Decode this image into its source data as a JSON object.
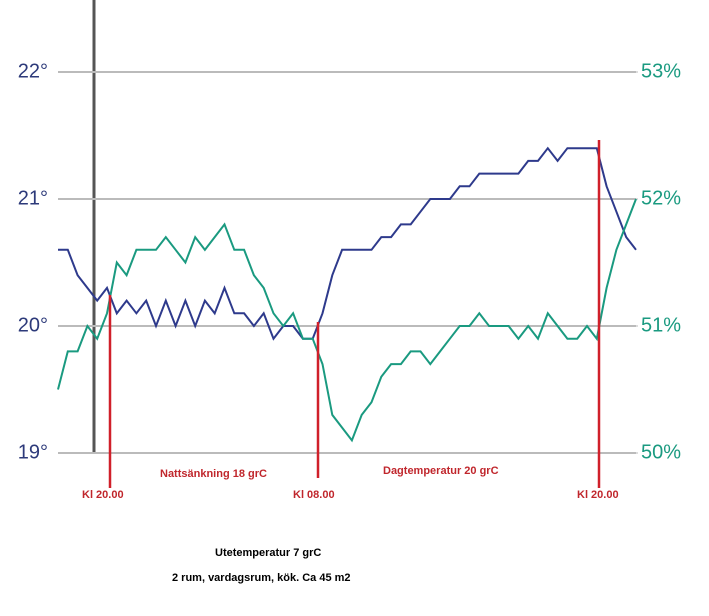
{
  "chart_data": {
    "type": "line",
    "ylim": [
      19,
      22
    ],
    "yticks": [
      {
        "value": 19,
        "label": "19°"
      },
      {
        "value": 20,
        "label": "20°"
      },
      {
        "value": 21,
        "label": "21°"
      },
      {
        "value": 22,
        "label": "22°"
      }
    ],
    "y2lim": [
      50,
      53
    ],
    "y2ticks": [
      {
        "value": 50,
        "label": "50%"
      },
      {
        "value": 51,
        "label": "51%"
      },
      {
        "value": 52,
        "label": "52%"
      },
      {
        "value": 53,
        "label": "53%"
      }
    ],
    "grid": true,
    "series": [
      {
        "color": "#2e3a8c",
        "values": [
          20.6,
          20.6,
          20.4,
          20.3,
          20.2,
          20.3,
          20.1,
          20.2,
          20.1,
          20.2,
          20.0,
          20.2,
          20.0,
          20.2,
          20.0,
          20.2,
          20.1,
          20.3,
          20.1,
          20.1,
          20.0,
          20.1,
          19.9,
          20.0,
          20.0,
          19.9,
          19.9,
          20.1,
          20.4,
          20.6,
          20.6,
          20.6,
          20.6,
          20.7,
          20.7,
          20.8,
          20.8,
          20.9,
          21.0,
          21.0,
          21.0,
          21.1,
          21.1,
          21.2,
          21.2,
          21.2,
          21.2,
          21.2,
          21.3,
          21.3,
          21.4,
          21.3,
          21.4,
          21.4,
          21.4,
          21.4,
          21.1,
          20.9,
          20.7,
          20.6
        ]
      },
      {
        "color": "#1a9a80",
        "axis": "y2",
        "values": [
          50.5,
          50.8,
          50.8,
          51.0,
          50.9,
          51.1,
          51.5,
          51.4,
          51.6,
          51.6,
          51.6,
          51.7,
          51.6,
          51.5,
          51.7,
          51.6,
          51.7,
          51.8,
          51.6,
          51.6,
          51.4,
          51.3,
          51.1,
          51.0,
          51.1,
          50.9,
          50.9,
          50.7,
          50.3,
          50.2,
          50.1,
          50.3,
          50.4,
          50.6,
          50.7,
          50.7,
          50.8,
          50.8,
          50.7,
          50.8,
          50.9,
          51.0,
          51.0,
          51.1,
          51.0,
          51.0,
          51.0,
          50.9,
          51.0,
          50.9,
          51.1,
          51.0,
          50.9,
          50.9,
          51.0,
          50.9,
          51.3,
          51.6,
          51.8,
          52.0
        ]
      }
    ],
    "annotations": [
      "Kl 20.00",
      "Nattsänkning 18 grC",
      "Kl 08.00",
      "Dagtemperatur 20 grC",
      "Kl 20.00"
    ],
    "notes": [
      "Utetemperatur 7 grC",
      "2 rum, vardagsrum, kök. Ca 45 m2"
    ]
  }
}
